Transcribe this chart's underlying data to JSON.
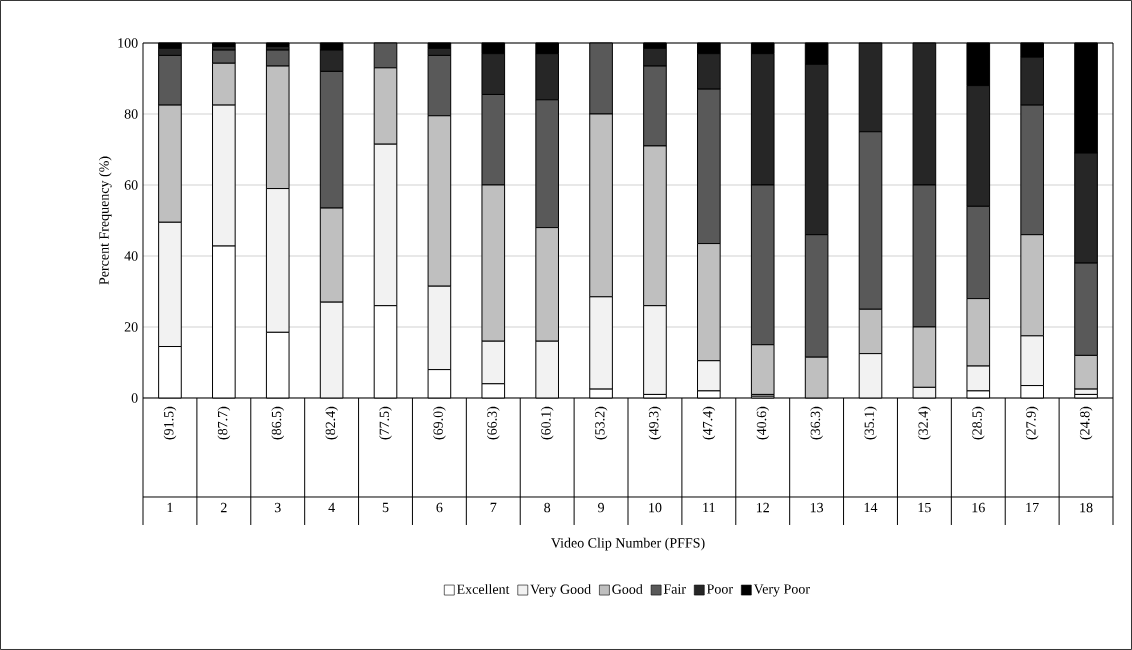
{
  "chart_data": {
    "type": "bar",
    "stacked": true,
    "xlabel": "Video Clip Number (PFFS)",
    "ylabel": "Percent Frequency (%)",
    "categories": [
      "1",
      "2",
      "3",
      "4",
      "5",
      "6",
      "7",
      "8",
      "9",
      "10",
      "11",
      "12",
      "13",
      "14",
      "15",
      "16",
      "17",
      "18"
    ],
    "annotations": [
      "(91.5)",
      "(87.7)",
      "(86.5)",
      "(82.4)",
      "(77.5)",
      "(69.0)",
      "(66.3)",
      "(60.1)",
      "(53.2)",
      "(49.3)",
      "(47.4)",
      "(40.6)",
      "(36.3)",
      "(35.1)",
      "(32.4)",
      "(28.5)",
      "(27.9)",
      "(24.8)"
    ],
    "series": [
      {
        "name": "Excellent",
        "color": "#ffffff",
        "values": [
          14.5,
          42.8,
          18.5,
          0,
          26,
          8,
          4,
          0,
          2.5,
          1,
          2,
          0.5,
          0,
          0,
          0,
          2,
          3.5,
          1
        ]
      },
      {
        "name": "Very Good",
        "color": "#f2f2f2",
        "values": [
          35,
          39.7,
          40.5,
          27,
          45.5,
          23.5,
          12,
          16,
          26,
          25,
          8.5,
          0.5,
          0,
          12.5,
          3,
          7,
          14,
          1.5
        ]
      },
      {
        "name": "Good",
        "color": "#bfbfbf",
        "values": [
          33,
          11.8,
          34.5,
          26.5,
          21.5,
          48,
          44,
          32,
          51.5,
          45,
          33,
          14,
          11.5,
          12.5,
          17,
          19,
          28.5,
          9.5
        ]
      },
      {
        "name": "Fair",
        "color": "#595959",
        "values": [
          14,
          3.7,
          4.5,
          38.5,
          7,
          17,
          25.5,
          36,
          20,
          22.5,
          43.5,
          45,
          34.5,
          50,
          40,
          26,
          36.5,
          26
        ]
      },
      {
        "name": "Poor",
        "color": "#262626",
        "values": [
          2,
          1,
          1,
          6,
          0,
          2,
          11.5,
          13,
          0,
          5,
          10,
          37,
          48,
          25,
          40,
          34,
          13.5,
          31
        ]
      },
      {
        "name": "Very Poor",
        "color": "#000000",
        "values": [
          1.5,
          1,
          1,
          2,
          0,
          1.5,
          3,
          3,
          0,
          1.5,
          3,
          3,
          6,
          0,
          0,
          12,
          4,
          31
        ]
      }
    ],
    "ylim": [
      0,
      100
    ],
    "yticks": [
      0,
      20,
      40,
      60,
      80,
      100
    ],
    "grid": "y",
    "legend": "bottom"
  }
}
